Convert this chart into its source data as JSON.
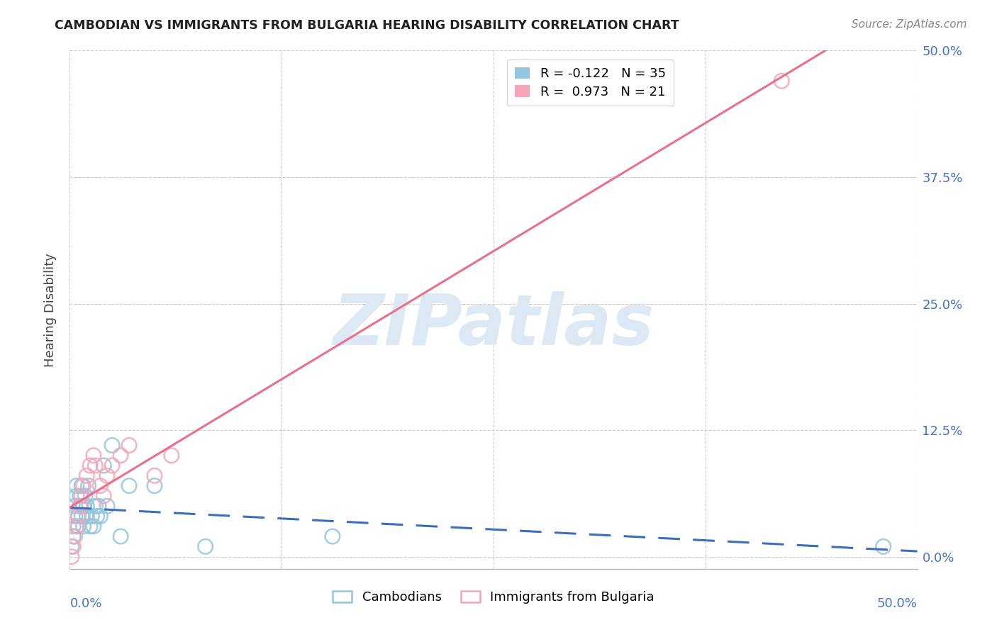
{
  "title": "CAMBODIAN VS IMMIGRANTS FROM BULGARIA HEARING DISABILITY CORRELATION CHART",
  "source": "Source: ZipAtlas.com",
  "ylabel": "Hearing Disability",
  "ytick_labels": [
    "0.0%",
    "12.5%",
    "25.0%",
    "37.5%",
    "50.0%"
  ],
  "ytick_values": [
    0.0,
    0.125,
    0.25,
    0.375,
    0.5
  ],
  "legend1_color": "#92c5de",
  "legend2_color": "#f4a6b8",
  "legend1_label": "R = -0.122   N = 35",
  "legend2_label": "R =  0.973   N = 21",
  "legend_label_cambodians": "Cambodians",
  "legend_label_bulgaria": "Immigrants from Bulgaria",
  "blue_scatter_color": "#92c5de",
  "pink_scatter_color": "#f4a6b8",
  "line_blue_color": "#3b6ebb",
  "line_pink_color": "#e8708a",
  "background_color": "#ffffff",
  "watermark_text": "ZIPatlas",
  "watermark_color": "#dde8f5",
  "cambodian_x": [
    0.001,
    0.002,
    0.002,
    0.003,
    0.003,
    0.004,
    0.004,
    0.005,
    0.005,
    0.006,
    0.006,
    0.007,
    0.007,
    0.008,
    0.008,
    0.009,
    0.01,
    0.01,
    0.011,
    0.012,
    0.013,
    0.014,
    0.015,
    0.016,
    0.017,
    0.018,
    0.02,
    0.022,
    0.025,
    0.03,
    0.035,
    0.05,
    0.08,
    0.155,
    0.48
  ],
  "cambodian_y": [
    0.01,
    0.02,
    0.03,
    0.04,
    0.05,
    0.06,
    0.07,
    0.04,
    0.03,
    0.05,
    0.06,
    0.07,
    0.04,
    0.05,
    0.03,
    0.06,
    0.04,
    0.05,
    0.07,
    0.03,
    0.04,
    0.03,
    0.05,
    0.04,
    0.05,
    0.04,
    0.09,
    0.05,
    0.11,
    0.02,
    0.07,
    0.07,
    0.01,
    0.02,
    0.01
  ],
  "bulgaria_x": [
    0.001,
    0.002,
    0.003,
    0.004,
    0.005,
    0.006,
    0.007,
    0.008,
    0.01,
    0.012,
    0.014,
    0.015,
    0.018,
    0.02,
    0.022,
    0.025,
    0.03,
    0.035,
    0.05,
    0.06,
    0.42
  ],
  "bulgaria_y": [
    0.0,
    0.01,
    0.02,
    0.03,
    0.04,
    0.05,
    0.06,
    0.07,
    0.08,
    0.09,
    0.1,
    0.09,
    0.07,
    0.06,
    0.08,
    0.09,
    0.1,
    0.11,
    0.08,
    0.1,
    0.47
  ],
  "xmin": 0.0,
  "xmax": 0.5,
  "ymin": -0.005,
  "ymax": 0.5,
  "xtick_positions": [
    0.0,
    0.125,
    0.25,
    0.375,
    0.5
  ]
}
